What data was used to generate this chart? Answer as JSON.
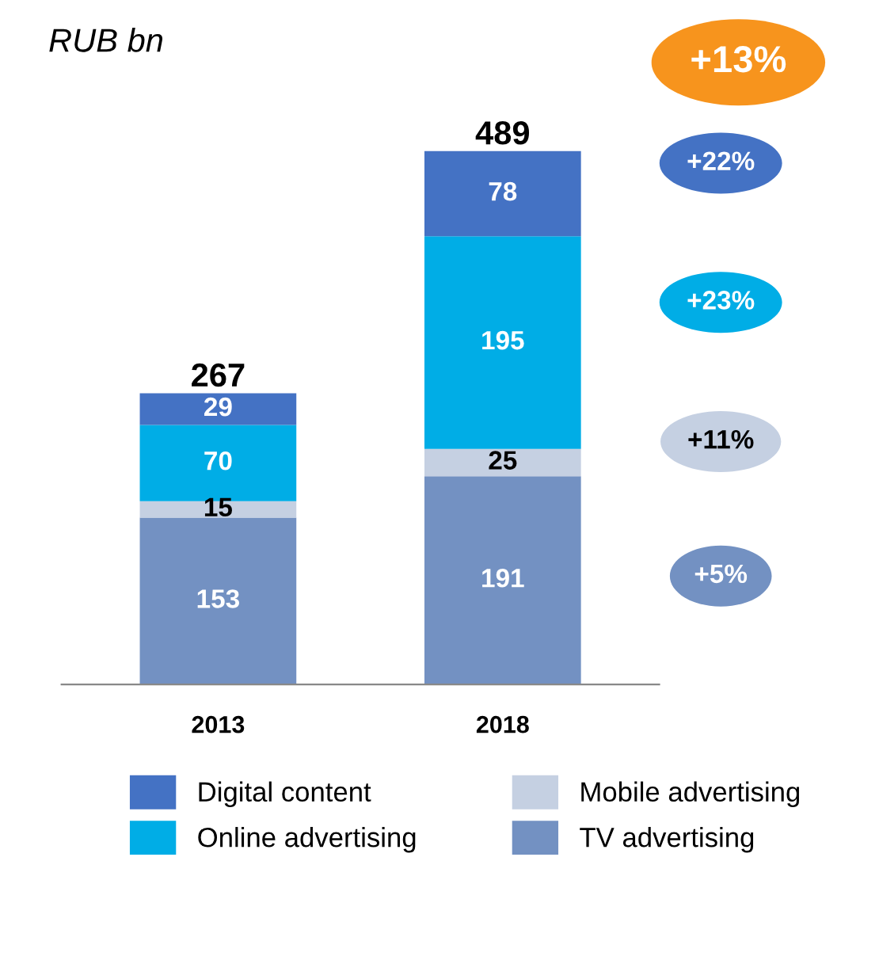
{
  "chart_data": {
    "type": "bar",
    "stacked": true,
    "title": "RUB bn",
    "categories": [
      "2013",
      "2018"
    ],
    "series": [
      {
        "name": "TV advertising",
        "color": "#7391c2",
        "values": [
          153,
          191
        ]
      },
      {
        "name": "Mobile advertising",
        "color": "#c5d0e2",
        "values": [
          15,
          25
        ]
      },
      {
        "name": "Online advertising",
        "color": "#00ade6",
        "values": [
          70,
          195
        ]
      },
      {
        "name": "Digital content",
        "color": "#4472c4",
        "values": [
          29,
          78
        ]
      }
    ],
    "totals": [
      "267",
      "489"
    ],
    "data_labels": true,
    "legend": "bottom",
    "tick_labels": "x",
    "annotations": [
      "+13%",
      "+22%",
      "+23%",
      "+11%",
      "+5%"
    ]
  }
}
